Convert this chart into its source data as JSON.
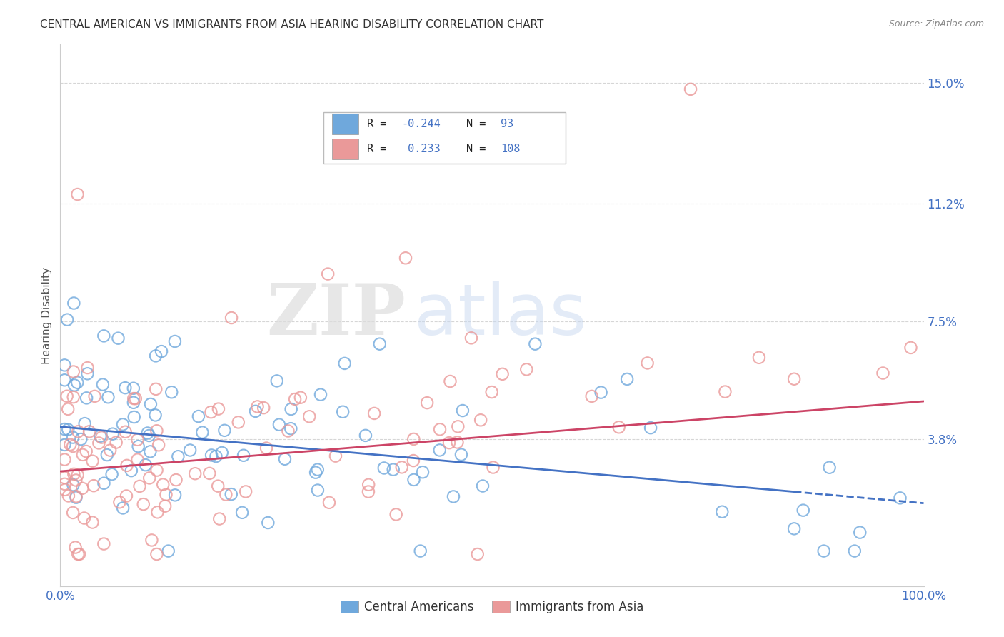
{
  "title": "CENTRAL AMERICAN VS IMMIGRANTS FROM ASIA HEARING DISABILITY CORRELATION CHART",
  "source": "Source: ZipAtlas.com",
  "ylabel": "Hearing Disability",
  "xmin": 0.0,
  "xmax": 1.0,
  "ymin": -0.008,
  "ymax": 0.162,
  "blue_color": "#6fa8dc",
  "pink_color": "#ea9999",
  "blue_edge": "#6fa8dc",
  "pink_edge": "#ea9999",
  "trend_blue": "#4472c4",
  "trend_pink": "#cc4466",
  "blue_R": -0.244,
  "blue_N": 93,
  "pink_R": 0.233,
  "pink_N": 108,
  "legend_label_blue": "Central Americans",
  "legend_label_pink": "Immigrants from Asia",
  "axis_label_color": "#4472c4",
  "grid_color": "#cccccc",
  "title_color": "#333333",
  "title_fontsize": 11,
  "ytick_vals": [
    0.038,
    0.075,
    0.112,
    0.15
  ],
  "ytick_labels": [
    "3.8%",
    "7.5%",
    "11.2%",
    "15.0%"
  ],
  "blue_trend_x0": 0.0,
  "blue_trend_y0": 0.042,
  "blue_trend_x1": 1.0,
  "blue_trend_y1": 0.018,
  "pink_trend_x0": 0.0,
  "pink_trend_y0": 0.028,
  "pink_trend_x1": 1.0,
  "pink_trend_y1": 0.05
}
